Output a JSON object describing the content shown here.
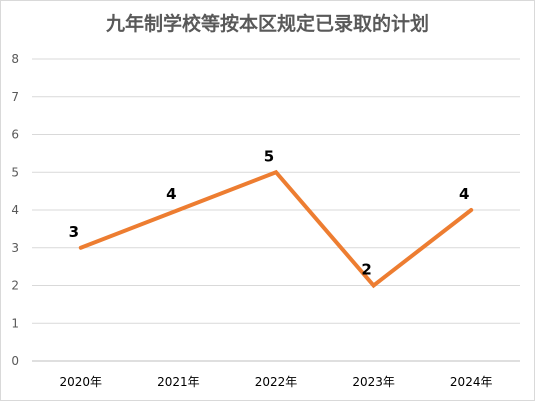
{
  "chart_data": {
    "type": "line",
    "title": "九年制学校等按本区规定已录取的计划",
    "xlabel": "",
    "ylabel": "",
    "categories": [
      "2020年",
      "2021年",
      "2022年",
      "2023年",
      "2024年"
    ],
    "series": [
      {
        "values": [
          3,
          4,
          5,
          2,
          4
        ]
      }
    ],
    "ylim": [
      0,
      8
    ],
    "yticks": [
      0,
      1,
      2,
      3,
      4,
      5,
      6,
      7,
      8
    ],
    "grid": true,
    "legend": "none",
    "data_labels": true,
    "line_color": "#ED7D31"
  }
}
